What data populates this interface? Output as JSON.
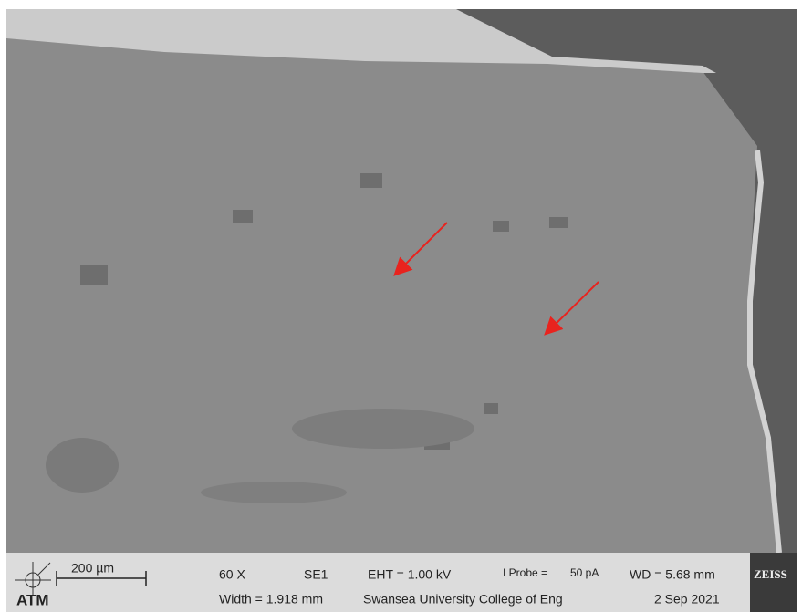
{
  "info_bar": {
    "scale_bar": "200 µm",
    "atm_logo": "ATM",
    "magnification": "60 X",
    "detector": "SE1",
    "eht": "EHT =  1.00 kV",
    "probe_label": "I Probe =",
    "probe_value": "50 pA",
    "wd": "WD = 5.68 mm",
    "logo": "ZEISS",
    "width": "Width = 1.918 mm",
    "institution": "Swansea University College of Eng",
    "date": "2 Sep 2021"
  }
}
